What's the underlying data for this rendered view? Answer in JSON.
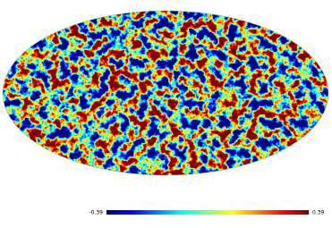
{
  "colorbar": {
    "min": -0.39,
    "max": 0.39
  }
}
